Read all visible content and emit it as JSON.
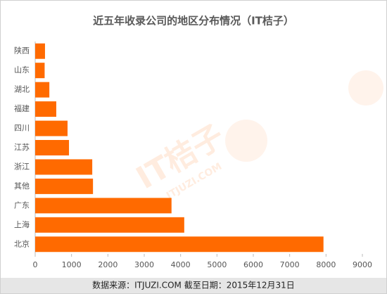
{
  "chart_data": {
    "type": "barh",
    "title": "近五年收录公司的地区分布情况（IT桔子）",
    "categories": [
      "陕西",
      "山东",
      "湖北",
      "福建",
      "四川",
      "江苏",
      "浙江",
      "其他",
      "广东",
      "上海",
      "北京"
    ],
    "values": [
      270,
      260,
      390,
      580,
      890,
      930,
      1570,
      1590,
      3750,
      4100,
      7930
    ],
    "color": "#ff6a00",
    "xlim": [
      0,
      9000
    ],
    "xticks": [
      0,
      1000,
      2000,
      3000,
      4000,
      5000,
      6000,
      7000,
      8000,
      9000
    ],
    "source": "数据来源：ITJUZI.COM  截至日期：2015年12月31日",
    "watermark": "IT桔子",
    "watermark_subtext": "ITJUZI.COM"
  }
}
